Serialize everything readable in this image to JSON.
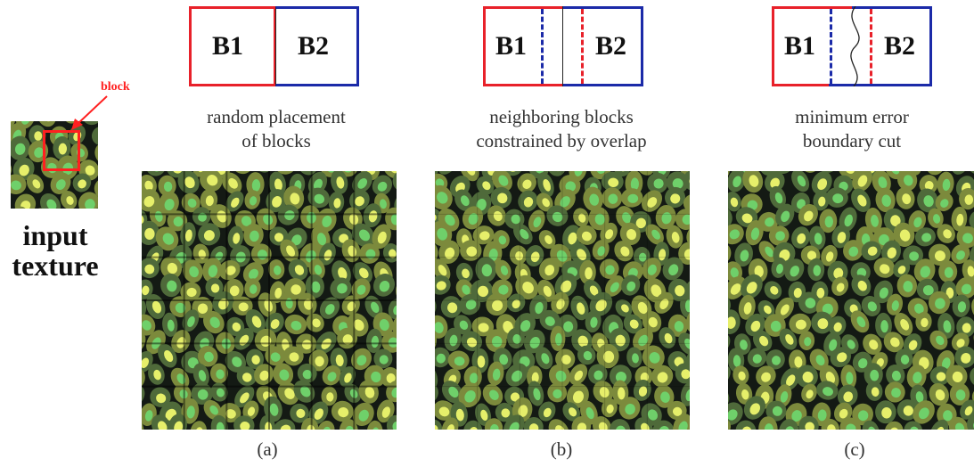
{
  "input": {
    "label_line1": "input",
    "label_line2": "texture",
    "block_label": "block"
  },
  "panels": [
    {
      "id": "a",
      "b1": "B1",
      "b2": "B2",
      "caption_line1": "random placement",
      "caption_line2": "of blocks",
      "sublabel": "(a)"
    },
    {
      "id": "b",
      "b1": "B1",
      "b2": "B2",
      "caption_line1": "neighboring blocks",
      "caption_line2": "constrained by overlap",
      "sublabel": "(b)"
    },
    {
      "id": "c",
      "b1": "B1",
      "b2": "B2",
      "caption_line1": "minimum error",
      "caption_line2": "boundary cut",
      "sublabel": "(c)"
    }
  ],
  "colors": {
    "b1_border": "#e8212a",
    "b2_border": "#1b2aa8",
    "texture_dark": "#141a14",
    "texture_green": "#6fd06a",
    "texture_yellow": "#e6ef6a",
    "block_marker": "#ff2020"
  }
}
